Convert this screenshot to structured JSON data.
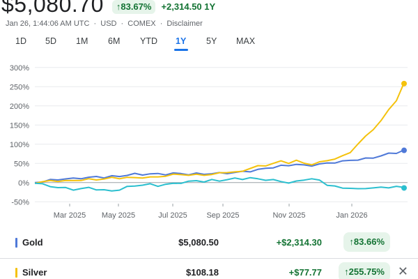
{
  "header": {
    "price": "$5,080.70",
    "change_pct": "↑83.67%",
    "change_abs": "+2,314.50 1Y",
    "timestamp": "Jan 26, 1:44:06 AM UTC",
    "currency": "USD",
    "exchange": "COMEX",
    "disclaimer": "Disclaimer",
    "separator": "·"
  },
  "range_tabs": [
    {
      "label": "1D",
      "active": false
    },
    {
      "label": "5D",
      "active": false
    },
    {
      "label": "1M",
      "active": false
    },
    {
      "label": "6M",
      "active": false
    },
    {
      "label": "YTD",
      "active": false
    },
    {
      "label": "1Y",
      "active": true
    },
    {
      "label": "5Y",
      "active": false
    },
    {
      "label": "MAX",
      "active": false
    }
  ],
  "chart_data": {
    "type": "line",
    "y_ticks": [
      "300%",
      "250%",
      "200%",
      "150%",
      "100%",
      "50%",
      "0%",
      "-50%"
    ],
    "y_tick_values": [
      300,
      250,
      200,
      150,
      100,
      50,
      0,
      -50
    ],
    "x_ticks": [
      "Mar 2025",
      "May 2025",
      "Jul 2025",
      "Sep 2025",
      "Nov 2025",
      "Jan 2026"
    ],
    "ylim": [
      -55,
      305
    ],
    "grid": true,
    "colors": {
      "gold": "#4f79d8",
      "silver": "#f4c20d",
      "third": "#2bbfcf",
      "grid": "#e8eaed",
      "zero": "#9aa0a6"
    },
    "series": [
      {
        "name": "Gold",
        "color": "#4f79d8",
        "values": [
          0,
          3,
          6,
          8,
          10,
          10,
          12,
          13,
          15,
          14,
          16,
          16,
          20,
          22,
          21,
          23,
          22,
          22,
          24,
          23,
          22,
          23,
          22,
          24,
          24,
          25,
          26,
          28,
          30,
          33,
          37,
          40,
          43,
          45,
          48,
          44,
          45,
          48,
          50,
          53,
          55,
          58,
          60,
          62,
          65,
          70,
          75,
          78,
          84
        ]
      },
      {
        "name": "Silver",
        "color": "#f4c20d",
        "values": [
          0,
          2,
          4,
          5,
          4,
          5,
          7,
          8,
          8,
          10,
          12,
          12,
          13,
          12,
          14,
          13,
          15,
          18,
          20,
          22,
          19,
          20,
          21,
          20,
          25,
          28,
          26,
          30,
          38,
          42,
          45,
          50,
          55,
          52,
          57,
          50,
          48,
          52,
          58,
          62,
          68,
          80,
          100,
          120,
          140,
          160,
          190,
          215,
          258
        ]
      },
      {
        "name": "",
        "color": "#2bbfcf",
        "values": [
          0,
          -5,
          -10,
          -12,
          -15,
          -18,
          -16,
          -14,
          -17,
          -20,
          -22,
          -18,
          -12,
          -8,
          -6,
          -5,
          -8,
          -5,
          -3,
          0,
          2,
          5,
          3,
          6,
          5,
          8,
          10,
          10,
          12,
          9,
          8,
          6,
          3,
          0,
          2,
          8,
          10,
          5,
          -5,
          -10,
          -15,
          -13,
          -18,
          -15,
          -13,
          -14,
          -12,
          -10,
          -14
        ]
      }
    ]
  },
  "rows": [
    {
      "name": "Gold",
      "color": "#4f79d8",
      "value": "$5,080.50",
      "delta": "+$2,314.30",
      "pct": "↑83.66%"
    },
    {
      "name": "Silver",
      "color": "#f4c20d",
      "value": "$108.18",
      "delta": "+$77.77",
      "pct": "↑255.75%",
      "remove": "✕"
    }
  ]
}
